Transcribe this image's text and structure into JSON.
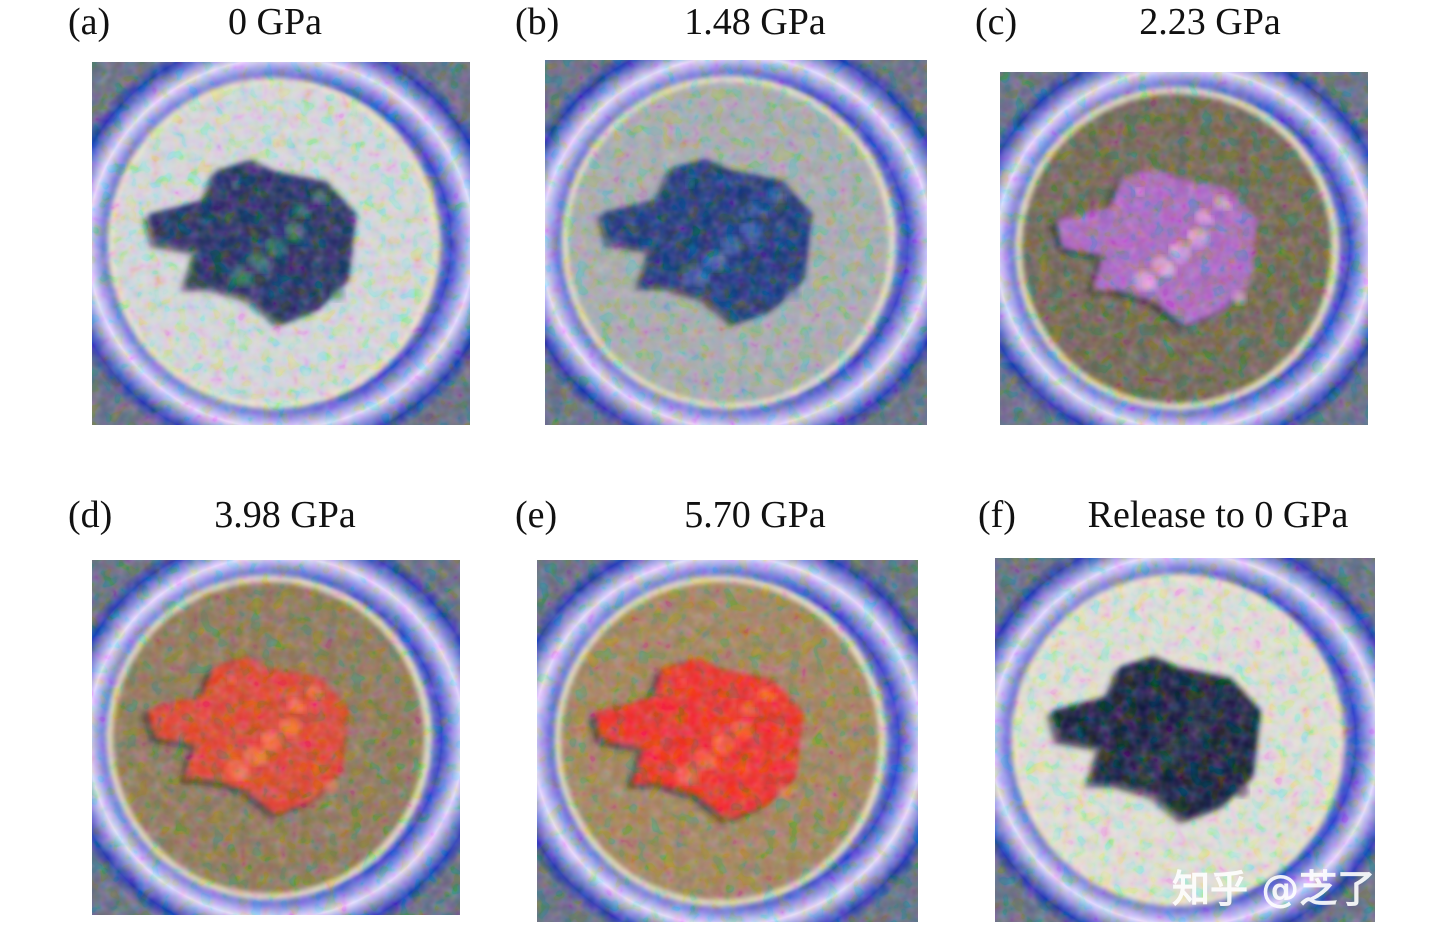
{
  "panels": [
    {
      "label": "(a)",
      "title": "0 GPa"
    },
    {
      "label": "(b)",
      "title": "1.48 GPa"
    },
    {
      "label": "(c)",
      "title": "2.23 GPa"
    },
    {
      "label": "(d)",
      "title": "3.98 GPa"
    },
    {
      "label": "(e)",
      "title": "5.70 GPa"
    },
    {
      "label": "(f)",
      "title": "Release to 0 GPa"
    }
  ],
  "watermark": "知乎 @芝了"
}
